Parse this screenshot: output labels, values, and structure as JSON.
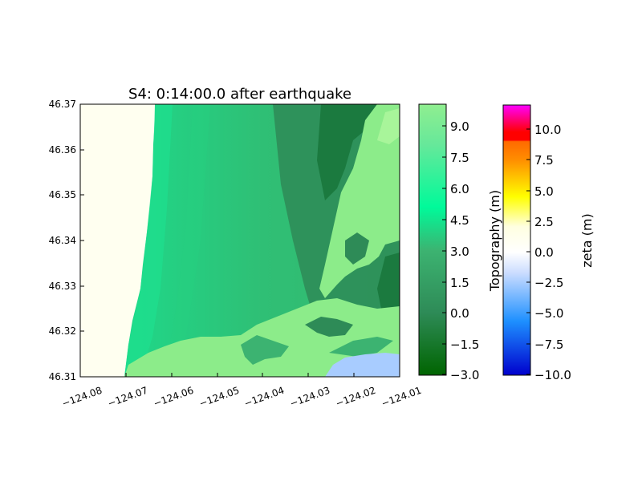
{
  "figure": {
    "title": "S4: 0:14:00.0 after earthquake"
  },
  "map": {
    "x_ticks": [
      "−124.08",
      "−124.07",
      "−124.06",
      "−124.05",
      "−124.04",
      "−124.03",
      "−124.02",
      "−124.01"
    ],
    "y_ticks": [
      "46.37",
      "46.36",
      "46.35",
      "46.34",
      "46.33",
      "46.32",
      "46.31"
    ],
    "x_range": [
      -124.08,
      -124.01
    ],
    "y_range": [
      46.31,
      46.37
    ]
  },
  "topography_colorbar": {
    "label": "Topography (m)",
    "ticks": [
      "9.0",
      "7.5",
      "6.0",
      "4.5",
      "3.0",
      "1.5",
      "0.0",
      "−1.5",
      "−3.0"
    ],
    "range": [
      -3.0,
      10.0
    ],
    "colors": [
      "#006400",
      "#3cb371",
      "#00fa9a",
      "#90ee90"
    ]
  },
  "zeta_colorbar": {
    "label": "zeta (m)",
    "ticks": [
      "10.0",
      "7.5",
      "5.0",
      "2.5",
      "0.0",
      "−2.5",
      "−5.0",
      "−7.5",
      "−10.0"
    ],
    "range": [
      -10.0,
      12.0
    ],
    "colors": [
      "#0000cd",
      "#1e90ff",
      "#ffffff",
      "#ffff00",
      "#ff8c00",
      "#ff0000",
      "#ff00ff"
    ]
  }
}
